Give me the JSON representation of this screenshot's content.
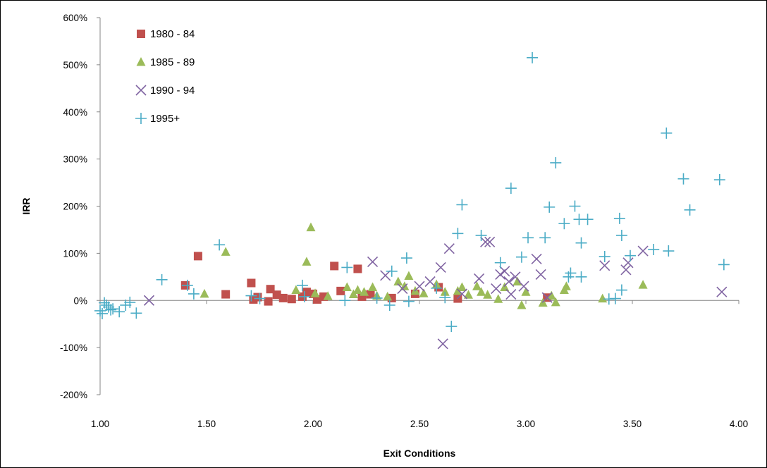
{
  "chart_data": {
    "type": "scatter",
    "xlabel": "Exit Conditions",
    "ylabel": "IRR",
    "xlim": [
      1.0,
      4.0
    ],
    "ylim": [
      -200,
      600
    ],
    "x_ticks": [
      "1.00",
      "1.50",
      "2.00",
      "2.50",
      "3.00",
      "3.50",
      "4.00"
    ],
    "y_ticks": [
      "-200%",
      "-100%",
      "0%",
      "100%",
      "200%",
      "300%",
      "400%",
      "500%",
      "600%"
    ],
    "legend_position": "top-left",
    "series": [
      {
        "name": "1980 - 84",
        "marker": "square",
        "color": "#c0504d",
        "points": [
          [
            1.4,
            32
          ],
          [
            1.46,
            94
          ],
          [
            1.59,
            13
          ],
          [
            1.71,
            37
          ],
          [
            1.72,
            2
          ],
          [
            1.74,
            7
          ],
          [
            1.79,
            -2
          ],
          [
            1.8,
            24
          ],
          [
            1.83,
            12
          ],
          [
            1.86,
            5
          ],
          [
            1.9,
            3
          ],
          [
            1.95,
            8
          ],
          [
            1.97,
            18
          ],
          [
            2.0,
            14
          ],
          [
            2.02,
            2
          ],
          [
            2.05,
            8
          ],
          [
            2.1,
            73
          ],
          [
            2.13,
            20
          ],
          [
            2.21,
            67
          ],
          [
            2.23,
            8
          ],
          [
            2.27,
            13
          ],
          [
            2.37,
            5
          ],
          [
            2.48,
            14
          ],
          [
            2.59,
            28
          ],
          [
            2.68,
            4
          ],
          [
            3.1,
            6
          ]
        ]
      },
      {
        "name": "1985 - 89",
        "marker": "triangle",
        "color": "#9bbb59",
        "points": [
          [
            1.49,
            14
          ],
          [
            1.59,
            103
          ],
          [
            1.92,
            22
          ],
          [
            1.97,
            82
          ],
          [
            1.99,
            155
          ],
          [
            2.01,
            15
          ],
          [
            2.07,
            9
          ],
          [
            2.16,
            28
          ],
          [
            2.19,
            13
          ],
          [
            2.21,
            22
          ],
          [
            2.24,
            18
          ],
          [
            2.28,
            28
          ],
          [
            2.3,
            10
          ],
          [
            2.35,
            8
          ],
          [
            2.4,
            40
          ],
          [
            2.43,
            30
          ],
          [
            2.45,
            52
          ],
          [
            2.48,
            20
          ],
          [
            2.52,
            15
          ],
          [
            2.58,
            34
          ],
          [
            2.62,
            18
          ],
          [
            2.68,
            20
          ],
          [
            2.7,
            28
          ],
          [
            2.73,
            12
          ],
          [
            2.77,
            30
          ],
          [
            2.79,
            18
          ],
          [
            2.82,
            12
          ],
          [
            2.87,
            3
          ],
          [
            2.9,
            28
          ],
          [
            2.96,
            40
          ],
          [
            2.98,
            -10
          ],
          [
            3.0,
            18
          ],
          [
            3.08,
            -5
          ],
          [
            3.12,
            10
          ],
          [
            3.14,
            -4
          ],
          [
            3.18,
            22
          ],
          [
            3.19,
            30
          ],
          [
            3.36,
            4
          ],
          [
            3.55,
            33
          ]
        ]
      },
      {
        "name": "1990 - 94",
        "marker": "x",
        "color": "#8064a2",
        "points": [
          [
            1.23,
            0
          ],
          [
            2.28,
            82
          ],
          [
            2.34,
            53
          ],
          [
            2.42,
            25
          ],
          [
            2.5,
            30
          ],
          [
            2.55,
            40
          ],
          [
            2.6,
            70
          ],
          [
            2.61,
            -92
          ],
          [
            2.64,
            110
          ],
          [
            2.7,
            14
          ],
          [
            2.78,
            46
          ],
          [
            2.81,
            124
          ],
          [
            2.83,
            124
          ],
          [
            2.86,
            25
          ],
          [
            2.88,
            55
          ],
          [
            2.9,
            62
          ],
          [
            2.92,
            40
          ],
          [
            2.93,
            13
          ],
          [
            2.95,
            50
          ],
          [
            2.99,
            30
          ],
          [
            3.05,
            88
          ],
          [
            3.07,
            55
          ],
          [
            3.1,
            6
          ],
          [
            3.37,
            74
          ],
          [
            3.47,
            65
          ],
          [
            3.48,
            80
          ],
          [
            3.55,
            105
          ],
          [
            3.92,
            18
          ]
        ]
      },
      {
        "name": "1995+",
        "marker": "plus",
        "color": "#4bacc6",
        "points": [
          [
            1.0,
            -22
          ],
          [
            1.01,
            -28
          ],
          [
            1.02,
            -5
          ],
          [
            1.03,
            -10
          ],
          [
            1.04,
            -14
          ],
          [
            1.05,
            -20
          ],
          [
            1.06,
            -18
          ],
          [
            1.09,
            -24
          ],
          [
            1.12,
            -10
          ],
          [
            1.14,
            -4
          ],
          [
            1.17,
            -27
          ],
          [
            1.29,
            44
          ],
          [
            1.41,
            32
          ],
          [
            1.44,
            14
          ],
          [
            1.56,
            118
          ],
          [
            1.71,
            10
          ],
          [
            1.75,
            4
          ],
          [
            1.95,
            32
          ],
          [
            1.96,
            8
          ],
          [
            2.15,
            0
          ],
          [
            2.16,
            70
          ],
          [
            2.3,
            5
          ],
          [
            2.36,
            -10
          ],
          [
            2.37,
            62
          ],
          [
            2.44,
            90
          ],
          [
            2.45,
            -2
          ],
          [
            2.58,
            26
          ],
          [
            2.62,
            6
          ],
          [
            2.65,
            -55
          ],
          [
            2.68,
            142
          ],
          [
            2.7,
            203
          ],
          [
            2.79,
            138
          ],
          [
            2.88,
            80
          ],
          [
            2.93,
            238
          ],
          [
            2.98,
            92
          ],
          [
            3.01,
            133
          ],
          [
            3.03,
            515
          ],
          [
            3.09,
            133
          ],
          [
            3.11,
            198
          ],
          [
            3.14,
            292
          ],
          [
            3.18,
            163
          ],
          [
            3.2,
            50
          ],
          [
            3.21,
            58
          ],
          [
            3.23,
            200
          ],
          [
            3.25,
            172
          ],
          [
            3.26,
            122
          ],
          [
            3.26,
            50
          ],
          [
            3.29,
            172
          ],
          [
            3.37,
            93
          ],
          [
            3.39,
            3
          ],
          [
            3.42,
            4
          ],
          [
            3.44,
            174
          ],
          [
            3.45,
            138
          ],
          [
            3.45,
            22
          ],
          [
            3.49,
            95
          ],
          [
            3.6,
            108
          ],
          [
            3.66,
            355
          ],
          [
            3.67,
            105
          ],
          [
            3.74,
            258
          ],
          [
            3.77,
            192
          ],
          [
            3.91,
            256
          ],
          [
            3.93,
            76
          ]
        ]
      }
    ]
  }
}
